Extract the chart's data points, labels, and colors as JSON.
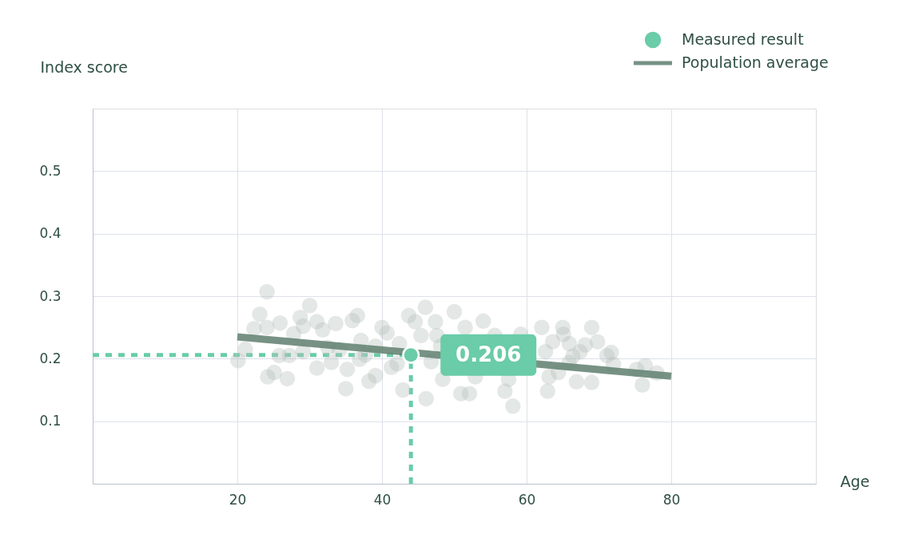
{
  "chart_data": {
    "type": "scatter",
    "xlabel": "Age",
    "ylabel": "Index score",
    "xlim": [
      0,
      100
    ],
    "ylim": [
      0,
      0.6
    ],
    "xticks": [
      20,
      40,
      60,
      80
    ],
    "yticks": [
      0.1,
      0.2,
      0.3,
      0.4,
      0.5
    ],
    "grid": true,
    "legend": "top right",
    "series": [
      {
        "color": "#b9c3bd",
        "marker": "circle",
        "x": [
          24.1,
          20.1,
          21.1,
          22.3,
          23.1,
          24.1,
          24.2,
          25.1,
          25.9,
          26.9,
          27.2,
          27.8,
          28.7,
          29.1,
          30.0,
          31.0,
          31.0,
          31.8,
          32.5,
          33.0,
          33.6,
          35.0,
          35.2,
          35.9,
          36.6,
          37.1,
          37.7,
          38.2,
          39.1,
          40.0,
          40.7,
          41.3,
          42.1,
          42.9,
          43.7,
          44.6,
          45.4,
          46.0,
          46.1,
          46.8,
          47.6,
          48.1,
          50.0,
          50.9,
          51.5,
          52.1,
          52.9,
          54.0,
          57.0,
          57.5,
          58.1,
          59.2,
          62.1,
          62.6,
          62.9,
          63.1,
          63.6,
          65.0,
          65.1,
          65.9,
          66.4,
          66.9,
          67.4,
          68.1,
          69.0,
          69.0,
          69.8,
          71.1,
          71.7,
          72.0,
          75.2,
          76.0,
          76.4,
          78.0,
          65.9,
          64.4,
          48.4,
          39.1,
          36.9,
          34.1,
          29.1,
          25.8,
          55.6,
          42.4,
          47.4
        ],
        "values": [
          0.307,
          0.197,
          0.215,
          0.248,
          0.271,
          0.25,
          0.171,
          0.178,
          0.257,
          0.168,
          0.205,
          0.24,
          0.266,
          0.252,
          0.285,
          0.259,
          0.185,
          0.246,
          0.218,
          0.194,
          0.256,
          0.152,
          0.183,
          0.261,
          0.269,
          0.229,
          0.206,
          0.164,
          0.22,
          0.25,
          0.241,
          0.186,
          0.192,
          0.15,
          0.269,
          0.259,
          0.237,
          0.282,
          0.136,
          0.195,
          0.237,
          0.22,
          0.275,
          0.144,
          0.25,
          0.144,
          0.171,
          0.26,
          0.148,
          0.167,
          0.124,
          0.239,
          0.25,
          0.211,
          0.148,
          0.171,
          0.227,
          0.25,
          0.239,
          0.224,
          0.204,
          0.163,
          0.211,
          0.222,
          0.25,
          0.162,
          0.227,
          0.205,
          0.21,
          0.191,
          0.183,
          0.158,
          0.189,
          0.177,
          0.194,
          0.178,
          0.167,
          0.173,
          0.199,
          0.214,
          0.211,
          0.205,
          0.237,
          0.224,
          0.259
        ]
      },
      {
        "name": "Population average",
        "type": "line",
        "color": "#5f7f6f",
        "x": [
          20,
          80
        ],
        "values": [
          0.235,
          0.172
        ]
      },
      {
        "name": "Measured result",
        "marker": "circle",
        "color": "#6acca8",
        "x": [
          44
        ],
        "values": [
          0.206
        ]
      }
    ],
    "ref_lines": [
      {
        "axis": "y",
        "value": 0.206,
        "color": "#6acca8",
        "line_style": "dashed"
      },
      {
        "axis": "x",
        "value": 44,
        "color": "#6acca8",
        "line_style": "dashed"
      }
    ],
    "annotations": [
      {
        "text": "0.206",
        "x": 44,
        "y": 0.206
      }
    ]
  }
}
